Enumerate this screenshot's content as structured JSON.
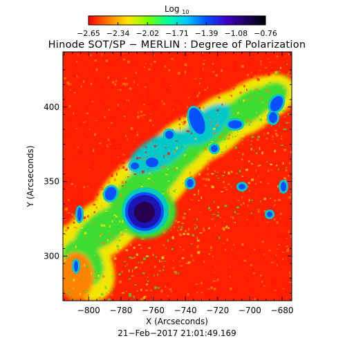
{
  "colorbar": {
    "label_main": "Log",
    "label_sub": "10",
    "ticks": [
      "−2.65",
      "−2.34",
      "−2.02",
      "−1.71",
      "−1.39",
      "−1.08",
      "−0.76"
    ],
    "colors": [
      "#ff0000",
      "#ff7a00",
      "#ffe600",
      "#7dff00",
      "#00ff9a",
      "#00c8ff",
      "#0050ff",
      "#4000c8",
      "#200060",
      "#000000"
    ]
  },
  "title": "Hinode SOT/SP − MERLIN : Degree of Polarization",
  "plot": {
    "xlabel": "X (Arcseconds)",
    "ylabel": "Y (Arcseconds)",
    "xticks": [
      "−800",
      "−780",
      "−760",
      "−740",
      "−720",
      "−700",
      "−680"
    ],
    "yticks": [
      "400",
      "350",
      "300"
    ],
    "xlim": [
      -816,
      -674
    ],
    "ylim": [
      270,
      437
    ],
    "timestamp": "21−Feb−2017 21:01:49.169"
  },
  "map_palette": {
    "red": "#ff1400",
    "orange": "#ff8200",
    "yellow": "#f0e600",
    "green": "#3cdc32",
    "cyan": "#00c8c8",
    "blue": "#0a50ff",
    "darkblue": "#1e14b4",
    "umbra": "#280050"
  }
}
